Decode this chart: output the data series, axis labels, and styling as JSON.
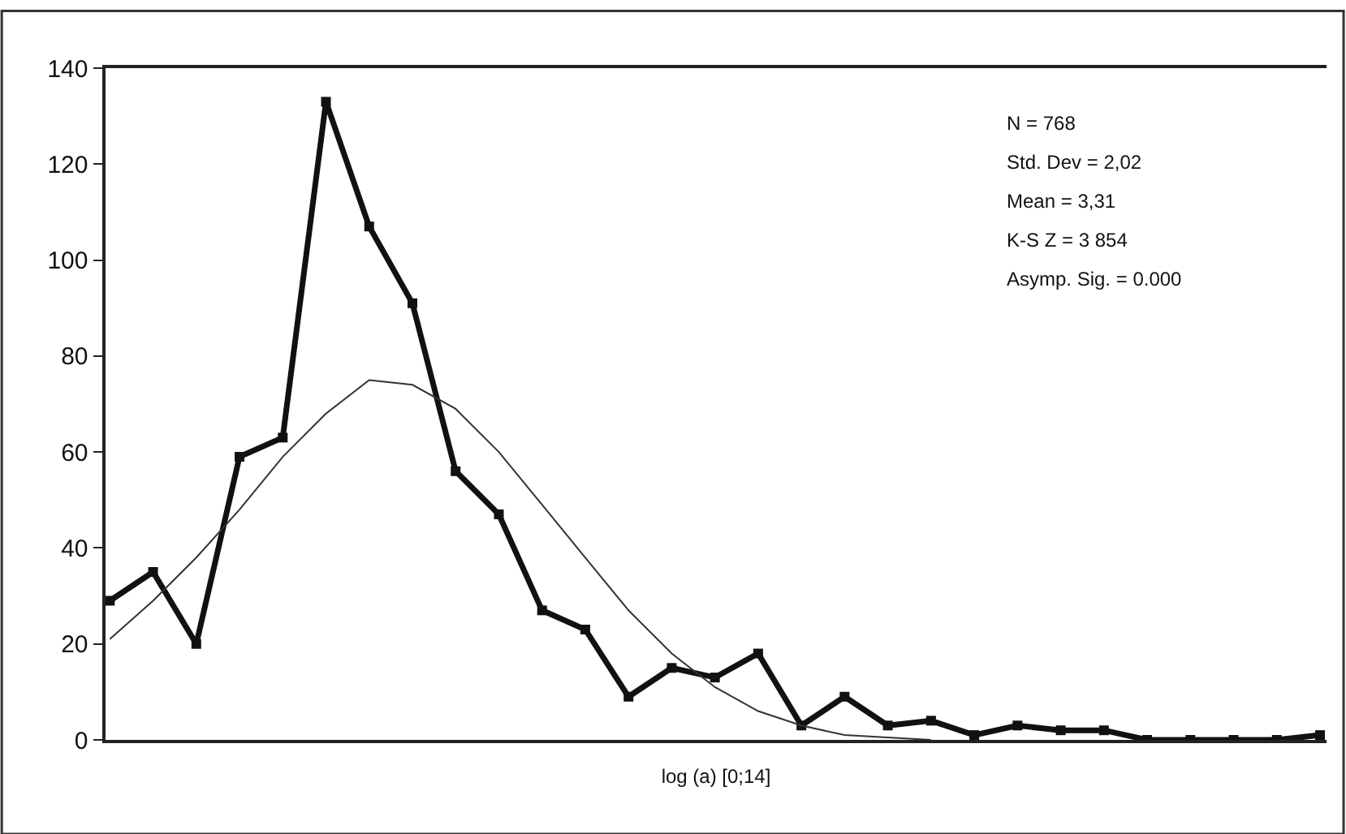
{
  "chart_data": {
    "type": "line",
    "xlabel": "log (a) [0;14]",
    "categories": [
      null,
      null,
      null,
      null,
      null,
      null,
      null,
      null,
      null,
      null,
      null,
      null,
      null,
      null,
      null,
      null,
      null,
      null,
      null,
      null,
      null,
      null,
      null,
      null,
      null,
      null,
      null,
      null,
      null
    ],
    "series": [
      {
        "color": "#111111",
        "marker": "square",
        "values": [
          29,
          35,
          20,
          59,
          63,
          133,
          107,
          91,
          56,
          47,
          27,
          23,
          9,
          15,
          13,
          18,
          3,
          9,
          3,
          4,
          1,
          3,
          2,
          2,
          0,
          0,
          0,
          0,
          1
        ]
      },
      {
        "color": "#333333",
        "marker": "none",
        "values": [
          21,
          29,
          38,
          48,
          59,
          68,
          75,
          74,
          69,
          60,
          49,
          38,
          27,
          18,
          11,
          6,
          3,
          1,
          0.5,
          0,
          null,
          null,
          null,
          null,
          null,
          null,
          null,
          null,
          null
        ]
      }
    ],
    "ylim": [
      0,
      140
    ],
    "yticks": [
      0,
      20,
      40,
      60,
      80,
      100,
      120,
      140
    ],
    "annotations": [
      "N = 768",
      "Std. Dev = 2,02",
      "Mean = 3,31",
      "K-S Z = 3 854",
      "Asymp. Sig. = 0.000"
    ]
  }
}
